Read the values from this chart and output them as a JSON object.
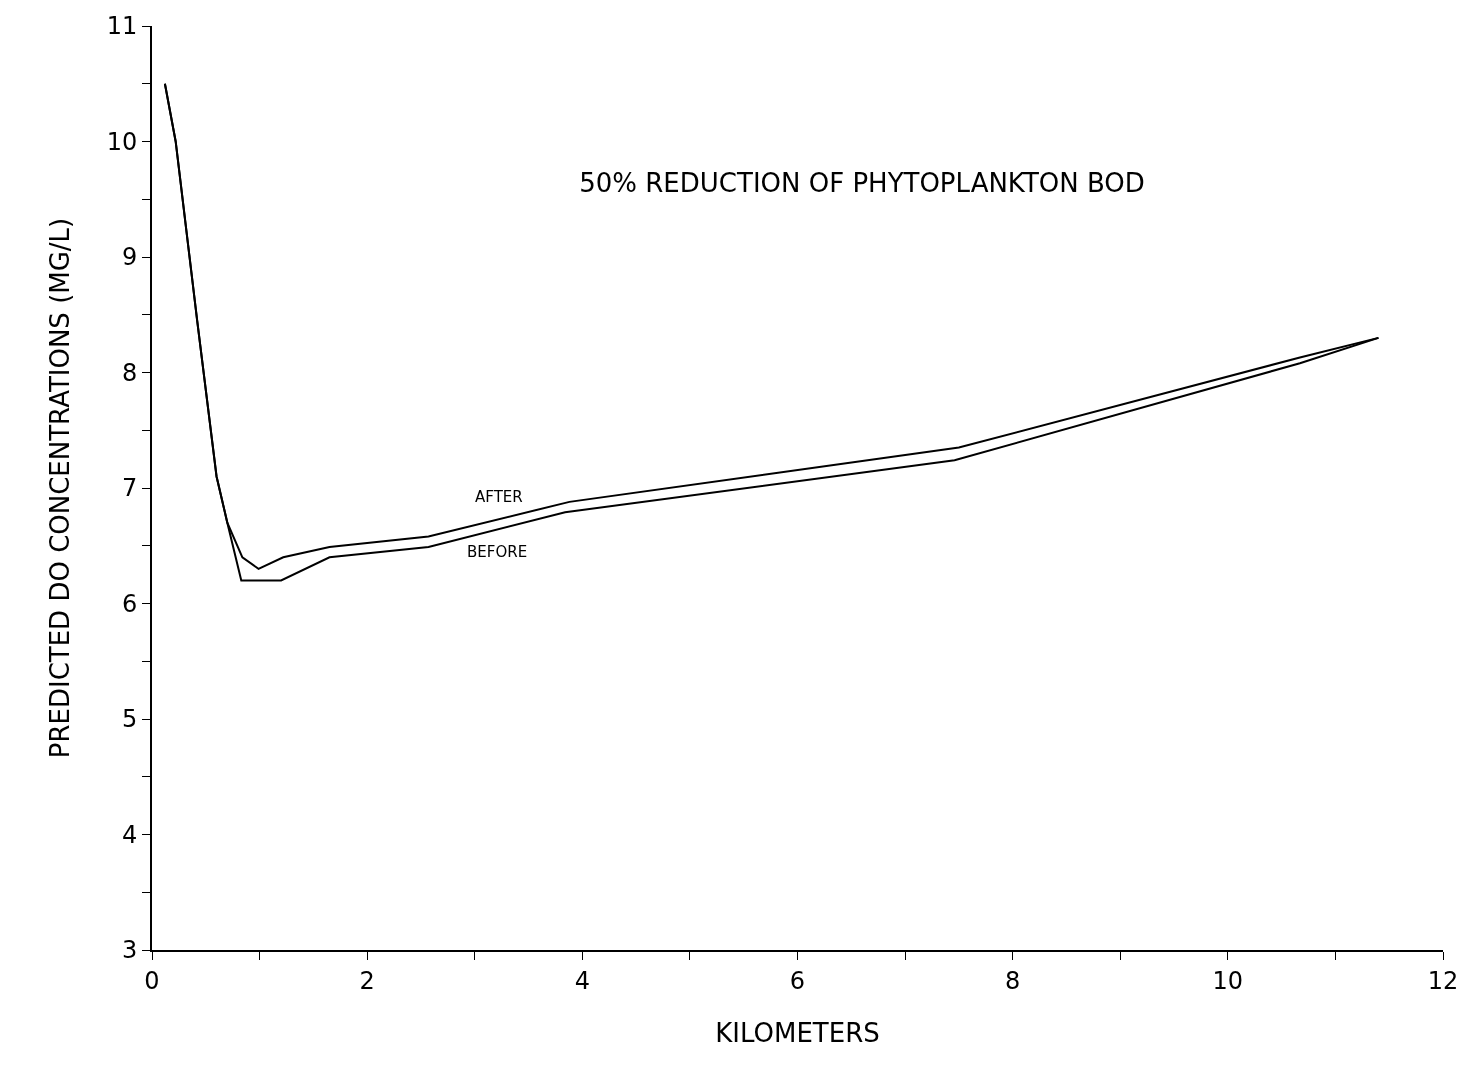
{
  "chart_data": {
    "type": "line",
    "title": "50% REDUCTION OF PHYTOPLANKTON BOD",
    "xlabel": "KILOMETERS",
    "ylabel": "PREDICTED DO CONCENTRATIONS (MG/L)",
    "xlim": [
      0,
      12
    ],
    "xticks": [
      0,
      {
        "value": 1,
        "label": null
      },
      2,
      {
        "value": 3,
        "label": null
      },
      4,
      {
        "value": 5,
        "label": null
      },
      6,
      {
        "value": 7,
        "label": null
      },
      8,
      {
        "value": 9,
        "label": null
      },
      10,
      {
        "value": 11,
        "label": null
      },
      12
    ],
    "ylim": [
      3,
      11
    ],
    "yticks": [
      3,
      {
        "value": 3.5,
        "label": null
      },
      4,
      {
        "value": 4.5,
        "label": null
      },
      5,
      {
        "value": 5.5,
        "label": null
      },
      6,
      {
        "value": 6.5,
        "label": null
      },
      7,
      {
        "value": 7.5,
        "label": null
      },
      8,
      {
        "value": 8.5,
        "label": null
      },
      9,
      {
        "value": 9.5,
        "label": null
      },
      10,
      {
        "value": 10.5,
        "label": null
      },
      11
    ],
    "grid": false,
    "legend": false,
    "marker": "none",
    "line_style": "solid",
    "series": [
      {
        "name": "AFTER",
        "color": "#000000",
        "x": [
          0.12,
          0.22,
          0.42,
          0.6,
          0.7,
          0.84,
          0.99,
          1.22,
          1.65,
          2.57,
          3.88,
          7.5,
          10.67,
          11.4
        ],
        "values": [
          10.5,
          10.0,
          8.45,
          7.1,
          6.7,
          6.4,
          6.3,
          6.4,
          6.49,
          6.58,
          6.88,
          7.35,
          8.13,
          8.3
        ]
      },
      {
        "name": "BEFORE",
        "color": "#000000",
        "x": [
          0.12,
          0.22,
          0.42,
          0.6,
          0.7,
          0.83,
          1.2,
          1.65,
          2.57,
          3.84,
          7.46,
          10.67,
          11.4
        ],
        "values": [
          10.5,
          10.0,
          8.45,
          7.1,
          6.7,
          6.2,
          6.2,
          6.4,
          6.49,
          6.79,
          7.24,
          8.08,
          8.3
        ]
      }
    ]
  }
}
